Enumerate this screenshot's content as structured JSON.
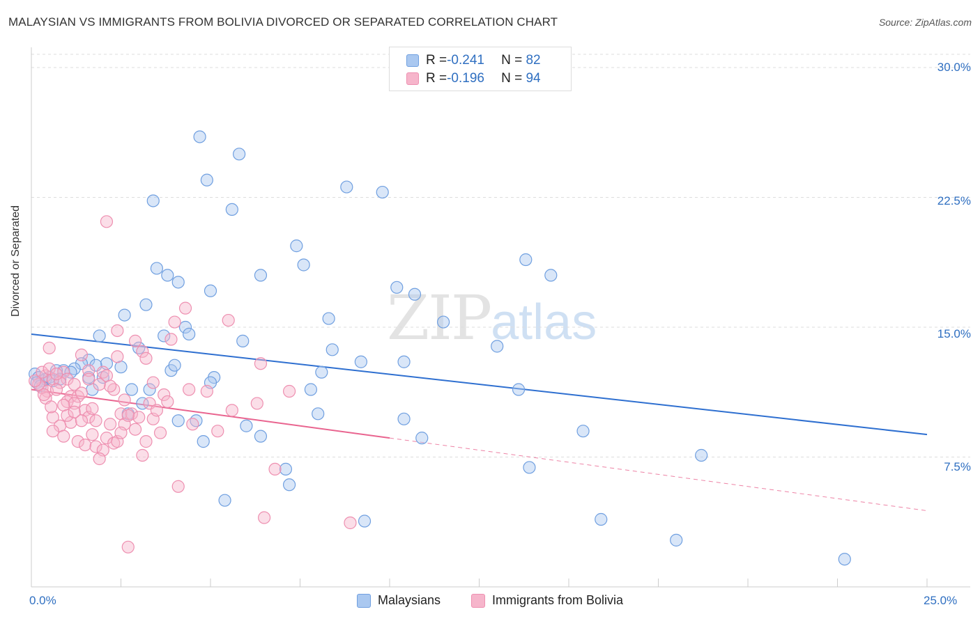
{
  "title": "MALAYSIAN VS IMMIGRANTS FROM BOLIVIA DIVORCED OR SEPARATED CORRELATION CHART",
  "source": "Source: ZipAtlas.com",
  "watermark": {
    "zip": "ZIP",
    "atlas": "atlas"
  },
  "legend_top": {
    "rows": [
      {
        "r_label": "R = ",
        "r_value": "-0.241",
        "n_label": "N = ",
        "n_value": "82"
      },
      {
        "r_label": "R = ",
        "r_value": "-0.196",
        "n_label": "N = ",
        "n_value": "94"
      }
    ]
  },
  "legend_bottom": [
    "Malaysians",
    "Immigrants from Bolivia"
  ],
  "colors": {
    "blue_fill": "#aac8f0",
    "blue_stroke": "#6f9fe0",
    "blue_line": "#2e6fd0",
    "pink_fill": "#f6b5cb",
    "pink_stroke": "#ee8fb0",
    "pink_line": "#e9648f",
    "axis_text": "#2f6fc1",
    "grid": "#dddddd"
  },
  "chart_data": {
    "type": "scatter",
    "title": "MALAYSIAN VS IMMIGRANTS FROM BOLIVIA DIVORCED OR SEPARATED CORRELATION CHART",
    "xlabel": "",
    "ylabel": "Divorced or Separated",
    "xlim": [
      0,
      25
    ],
    "ylim": [
      0,
      30
    ],
    "x_tick_labels": [
      "0.0%",
      "25.0%"
    ],
    "y_ticks": [
      7.5,
      15.0,
      22.5,
      30.0
    ],
    "y_tick_labels": [
      "7.5%",
      "15.0%",
      "22.5%",
      "30.0%"
    ],
    "series": [
      {
        "name": "Malaysians",
        "r": -0.241,
        "n": 82,
        "trend": {
          "x": [
            0,
            25
          ],
          "y": [
            14.6,
            8.8
          ],
          "dashed_from": null
        },
        "points": [
          [
            4.7,
            26.0
          ],
          [
            5.8,
            25.0
          ],
          [
            4.9,
            23.5
          ],
          [
            8.8,
            23.1
          ],
          [
            9.8,
            22.8
          ],
          [
            3.4,
            22.3
          ],
          [
            5.6,
            21.8
          ],
          [
            7.4,
            19.7
          ],
          [
            13.8,
            18.9
          ],
          [
            14.5,
            18.0
          ],
          [
            3.5,
            18.4
          ],
          [
            3.8,
            18.0
          ],
          [
            6.4,
            18.0
          ],
          [
            4.1,
            17.6
          ],
          [
            7.6,
            18.6
          ],
          [
            10.2,
            17.3
          ],
          [
            10.7,
            16.9
          ],
          [
            5.0,
            17.1
          ],
          [
            3.2,
            16.3
          ],
          [
            2.6,
            15.7
          ],
          [
            8.3,
            15.5
          ],
          [
            11.5,
            15.3
          ],
          [
            4.3,
            15.0
          ],
          [
            3.7,
            14.5
          ],
          [
            4.4,
            14.6
          ],
          [
            1.9,
            14.5
          ],
          [
            5.9,
            14.2
          ],
          [
            8.4,
            13.7
          ],
          [
            13.0,
            13.9
          ],
          [
            3.0,
            13.8
          ],
          [
            1.6,
            13.1
          ],
          [
            2.1,
            12.9
          ],
          [
            2.5,
            12.7
          ],
          [
            1.4,
            12.9
          ],
          [
            1.2,
            12.6
          ],
          [
            0.9,
            12.5
          ],
          [
            1.1,
            12.4
          ],
          [
            0.7,
            12.5
          ],
          [
            1.6,
            12.1
          ],
          [
            2.0,
            12.1
          ],
          [
            1.8,
            12.8
          ],
          [
            3.9,
            12.5
          ],
          [
            4.0,
            12.8
          ],
          [
            9.2,
            13.0
          ],
          [
            10.4,
            13.0
          ],
          [
            8.1,
            12.4
          ],
          [
            5.1,
            12.1
          ],
          [
            5.0,
            11.8
          ],
          [
            1.7,
            11.4
          ],
          [
            2.8,
            11.4
          ],
          [
            3.3,
            11.4
          ],
          [
            7.8,
            11.4
          ],
          [
            13.6,
            11.4
          ],
          [
            0.1,
            12.3
          ],
          [
            0.2,
            12.1
          ],
          [
            0.3,
            11.9
          ],
          [
            0.4,
            12.0
          ],
          [
            0.5,
            12.1
          ],
          [
            0.6,
            11.9
          ],
          [
            0.8,
            12.0
          ],
          [
            0.15,
            11.8
          ],
          [
            0.25,
            11.6
          ],
          [
            3.1,
            10.6
          ],
          [
            2.7,
            10.0
          ],
          [
            8.0,
            10.0
          ],
          [
            4.1,
            9.6
          ],
          [
            4.6,
            9.6
          ],
          [
            6.0,
            9.3
          ],
          [
            10.4,
            9.7
          ],
          [
            15.4,
            9.0
          ],
          [
            4.8,
            8.4
          ],
          [
            6.4,
            8.7
          ],
          [
            10.9,
            8.6
          ],
          [
            18.7,
            7.6
          ],
          [
            7.1,
            6.8
          ],
          [
            13.9,
            6.9
          ],
          [
            7.2,
            5.9
          ],
          [
            5.4,
            5.0
          ],
          [
            9.3,
            3.8
          ],
          [
            15.9,
            3.9
          ],
          [
            18.0,
            2.7
          ],
          [
            22.7,
            1.6
          ]
        ]
      },
      {
        "name": "Immigrants from Bolivia",
        "r": -0.196,
        "n": 94,
        "trend": {
          "x": [
            0,
            25
          ],
          "y": [
            11.4,
            4.4
          ],
          "solid_until_x": 10.0
        },
        "points": [
          [
            2.1,
            21.1
          ],
          [
            4.3,
            16.1
          ],
          [
            5.5,
            15.4
          ],
          [
            4.0,
            15.3
          ],
          [
            2.4,
            14.8
          ],
          [
            2.9,
            14.2
          ],
          [
            3.1,
            13.6
          ],
          [
            3.9,
            14.3
          ],
          [
            0.5,
            13.8
          ],
          [
            1.4,
            13.4
          ],
          [
            2.4,
            13.3
          ],
          [
            3.2,
            13.2
          ],
          [
            6.4,
            12.9
          ],
          [
            1.6,
            12.5
          ],
          [
            2.0,
            12.4
          ],
          [
            2.1,
            12.2
          ],
          [
            0.9,
            12.4
          ],
          [
            1.0,
            12.0
          ],
          [
            1.2,
            11.7
          ],
          [
            0.4,
            12.2
          ],
          [
            0.6,
            12.0
          ],
          [
            0.8,
            11.8
          ],
          [
            0.3,
            11.5
          ],
          [
            0.45,
            11.3
          ],
          [
            0.7,
            11.4
          ],
          [
            0.2,
            11.7
          ],
          [
            0.1,
            11.9
          ],
          [
            1.1,
            11.0
          ],
          [
            1.3,
            11.0
          ],
          [
            1.0,
            10.7
          ],
          [
            1.2,
            10.6
          ],
          [
            0.9,
            10.5
          ],
          [
            2.3,
            11.4
          ],
          [
            4.4,
            11.4
          ],
          [
            3.7,
            11.1
          ],
          [
            4.9,
            11.3
          ],
          [
            7.2,
            11.3
          ],
          [
            6.3,
            10.6
          ],
          [
            5.6,
            10.2
          ],
          [
            3.3,
            10.6
          ],
          [
            1.5,
            10.2
          ],
          [
            1.6,
            9.8
          ],
          [
            1.1,
            9.5
          ],
          [
            1.4,
            9.6
          ],
          [
            0.6,
            9.8
          ],
          [
            0.8,
            9.3
          ],
          [
            0.6,
            9.0
          ],
          [
            2.5,
            10.0
          ],
          [
            2.8,
            10.0
          ],
          [
            2.2,
            9.4
          ],
          [
            3.0,
            9.8
          ],
          [
            3.4,
            9.7
          ],
          [
            2.6,
            9.4
          ],
          [
            1.7,
            8.8
          ],
          [
            2.1,
            8.6
          ],
          [
            2.3,
            8.3
          ],
          [
            1.3,
            8.4
          ],
          [
            1.5,
            8.2
          ],
          [
            1.8,
            8.1
          ],
          [
            2.4,
            8.4
          ],
          [
            3.2,
            8.4
          ],
          [
            2.0,
            7.9
          ],
          [
            1.9,
            7.4
          ],
          [
            3.1,
            7.6
          ],
          [
            6.8,
            6.8
          ],
          [
            4.1,
            5.8
          ],
          [
            6.5,
            4.0
          ],
          [
            8.9,
            3.7
          ],
          [
            2.7,
            2.3
          ],
          [
            0.3,
            12.4
          ],
          [
            0.5,
            12.6
          ],
          [
            0.7,
            12.3
          ],
          [
            1.6,
            12.0
          ],
          [
            2.2,
            11.6
          ],
          [
            1.4,
            11.2
          ],
          [
            1.9,
            11.7
          ],
          [
            2.6,
            10.8
          ],
          [
            3.5,
            10.2
          ],
          [
            0.4,
            10.9
          ],
          [
            1.7,
            10.3
          ],
          [
            2.9,
            9.1
          ],
          [
            3.8,
            10.7
          ],
          [
            4.5,
            9.4
          ],
          [
            1.0,
            9.9
          ],
          [
            3.6,
            8.9
          ],
          [
            5.2,
            9.0
          ],
          [
            0.9,
            8.7
          ],
          [
            2.7,
            9.9
          ],
          [
            1.2,
            10.1
          ],
          [
            0.35,
            11.1
          ],
          [
            1.8,
            9.6
          ],
          [
            2.5,
            8.9
          ],
          [
            3.4,
            11.8
          ],
          [
            0.55,
            10.4
          ]
        ]
      }
    ]
  }
}
